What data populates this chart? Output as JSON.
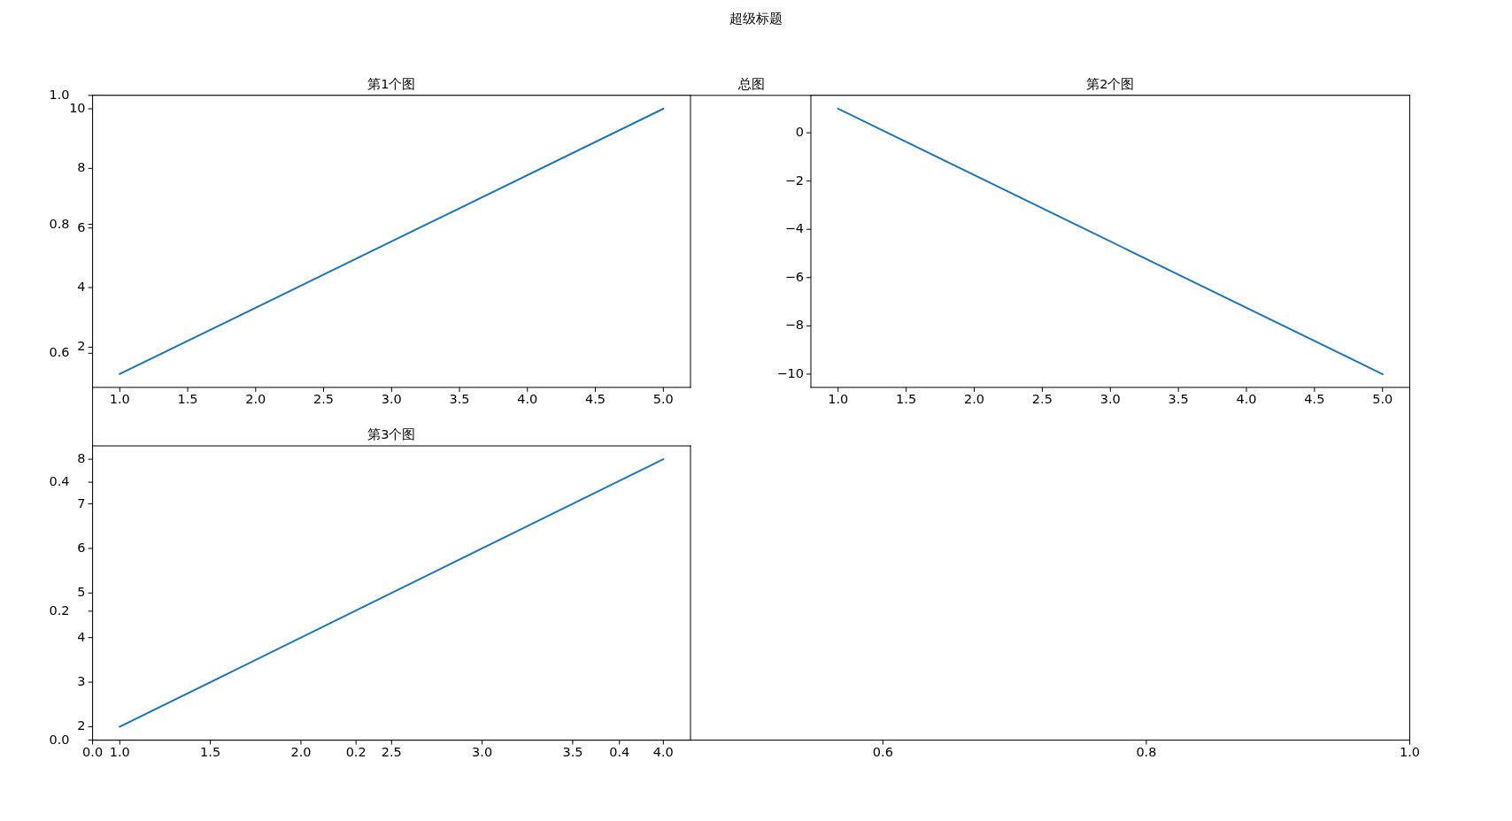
{
  "chart_data": [
    {
      "type": "line",
      "title": "超级标题",
      "subtitle": "总图",
      "xlim": [
        0,
        1
      ],
      "ylim": [
        0,
        1
      ],
      "xticks": [
        {
          "value": 0,
          "label": "0.0"
        },
        {
          "value": 0.2,
          "label": "0.2"
        },
        {
          "value": 0.4,
          "label": "0.4"
        },
        {
          "value": 0.6,
          "label": "0.6"
        },
        {
          "value": 0.8,
          "label": "0.8"
        },
        {
          "value": 1,
          "label": "1.0"
        }
      ],
      "yticks": [
        {
          "value": 0,
          "label": "0.0"
        },
        {
          "value": 0.2,
          "label": "0.2"
        },
        {
          "value": 0.4,
          "label": "0.4"
        },
        {
          "value": 0.6,
          "label": "0.6"
        },
        {
          "value": 0.8,
          "label": "0.8"
        },
        {
          "value": 1,
          "label": "1.0"
        }
      ]
    },
    {
      "type": "line",
      "title": "第1个图",
      "x": [
        1,
        5
      ],
      "values": [
        1.1,
        10
      ],
      "color": "#1f77b4",
      "xlim": [
        0.8,
        5.2
      ],
      "ylim": [
        0.65,
        10.45
      ],
      "xticks": [
        {
          "value": 1,
          "label": "1.0"
        },
        {
          "value": 1.5,
          "label": "1.5"
        },
        {
          "value": 2,
          "label": "2.0"
        },
        {
          "value": 2.5,
          "label": "2.5"
        },
        {
          "value": 3,
          "label": "3.0"
        },
        {
          "value": 3.5,
          "label": "3.5"
        },
        {
          "value": 4,
          "label": "4.0"
        },
        {
          "value": 4.5,
          "label": "4.5"
        },
        {
          "value": 5,
          "label": "5.0"
        }
      ],
      "yticks": [
        2,
        4,
        6,
        8,
        10
      ]
    },
    {
      "type": "line",
      "title": "第2个图",
      "x": [
        1,
        5
      ],
      "values": [
        1,
        -10
      ],
      "color": "#1f77b4",
      "xlim": [
        0.8,
        5.2
      ],
      "ylim": [
        -10.55,
        1.55
      ],
      "xticks": [
        {
          "value": 1,
          "label": "1.0"
        },
        {
          "value": 1.5,
          "label": "1.5"
        },
        {
          "value": 2,
          "label": "2.0"
        },
        {
          "value": 2.5,
          "label": "2.5"
        },
        {
          "value": 3,
          "label": "3.0"
        },
        {
          "value": 3.5,
          "label": "3.5"
        },
        {
          "value": 4,
          "label": "4.0"
        },
        {
          "value": 4.5,
          "label": "4.5"
        },
        {
          "value": 5,
          "label": "5.0"
        }
      ],
      "yticks": [
        {
          "value": -10,
          "label": "−10"
        },
        {
          "value": -8,
          "label": "−8"
        },
        {
          "value": -6,
          "label": "−6"
        },
        {
          "value": -4,
          "label": "−4"
        },
        {
          "value": -2,
          "label": "−2"
        },
        0
      ]
    },
    {
      "type": "line",
      "title": "第3个图",
      "x": [
        1,
        4
      ],
      "values": [
        2,
        8
      ],
      "color": "#1f77b4",
      "xlim": [
        0.85,
        4.15
      ],
      "ylim": [
        1.7,
        8.3
      ],
      "xticks": [
        {
          "value": 1,
          "label": "1.0"
        },
        {
          "value": 1.5,
          "label": "1.5"
        },
        {
          "value": 2,
          "label": "2.0"
        },
        {
          "value": 2.5,
          "label": "2.5"
        },
        {
          "value": 3,
          "label": "3.0"
        },
        {
          "value": 3.5,
          "label": "3.5"
        },
        {
          "value": 4,
          "label": "4.0"
        }
      ],
      "yticks": [
        2,
        3,
        4,
        5,
        6,
        7,
        8
      ]
    }
  ]
}
